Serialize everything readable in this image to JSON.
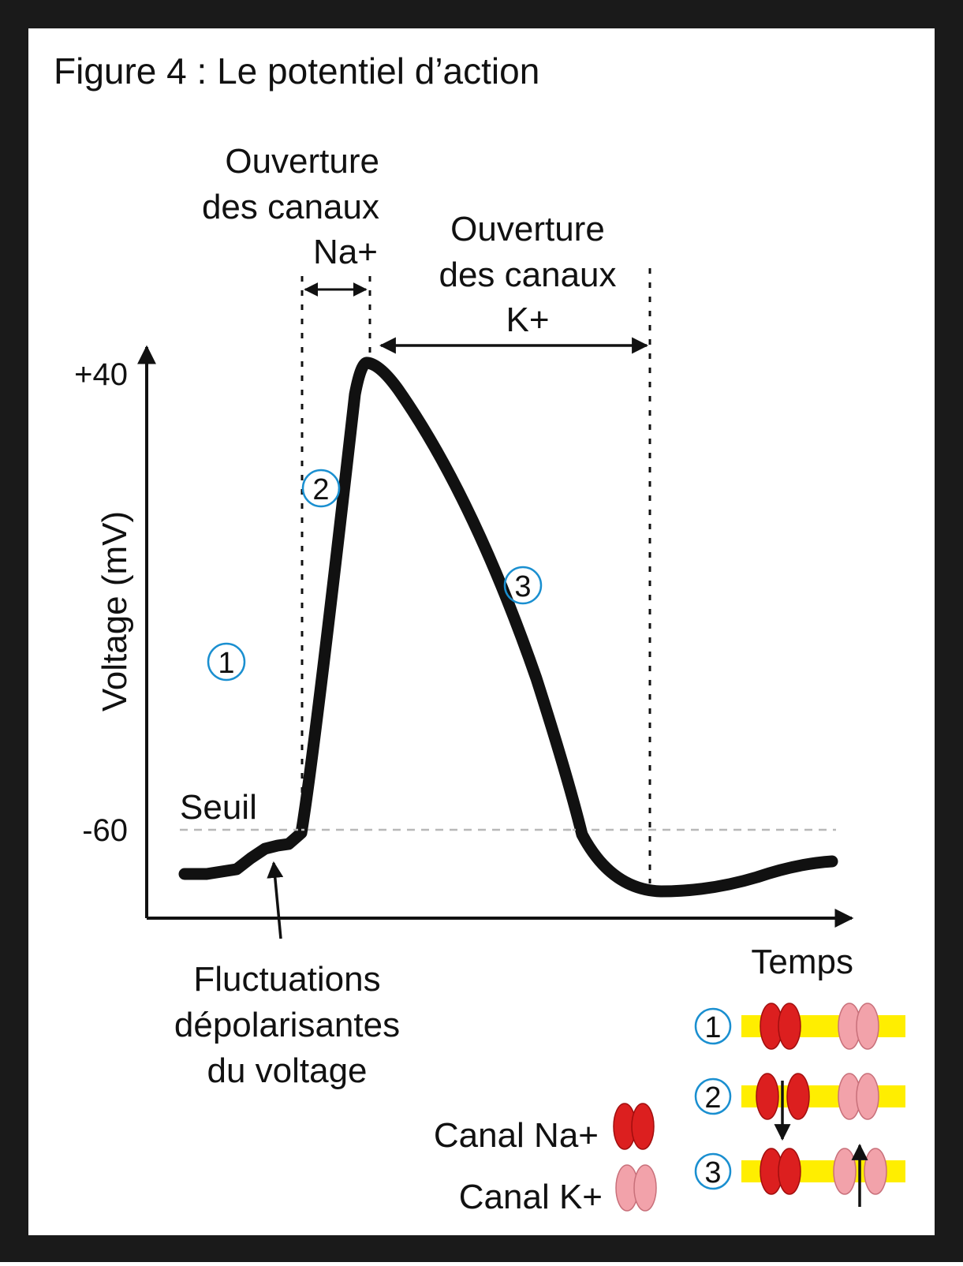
{
  "title": "Figure 4 : Le potentiel d’action",
  "y_axis": {
    "label": "Voltage (mV)",
    "ticks": [
      "+40",
      "-60"
    ]
  },
  "x_axis": {
    "label": "Temps"
  },
  "threshold_label": "Seuil",
  "na_annotation": [
    "Ouverture",
    "des canaux",
    "Na+"
  ],
  "k_annotation": [
    "Ouverture",
    "des canaux",
    "K+"
  ],
  "fluct_annotation": [
    "Fluctuations",
    "dépolarisantes",
    "du voltage"
  ],
  "phase_markers": [
    "1",
    "2",
    "3"
  ],
  "legend": {
    "na_label": "Canal Na+",
    "k_label": "Canal K+"
  },
  "states": [
    "1",
    "2",
    "3"
  ],
  "colors": {
    "frame": "#1a1a1a",
    "curve": "#111111",
    "na_channel": "#dc1f1f",
    "k_channel": "#f2a2aa",
    "membrane": "#ffee00",
    "marker": "#1a8fd0",
    "threshold": "#b8b8b8"
  }
}
